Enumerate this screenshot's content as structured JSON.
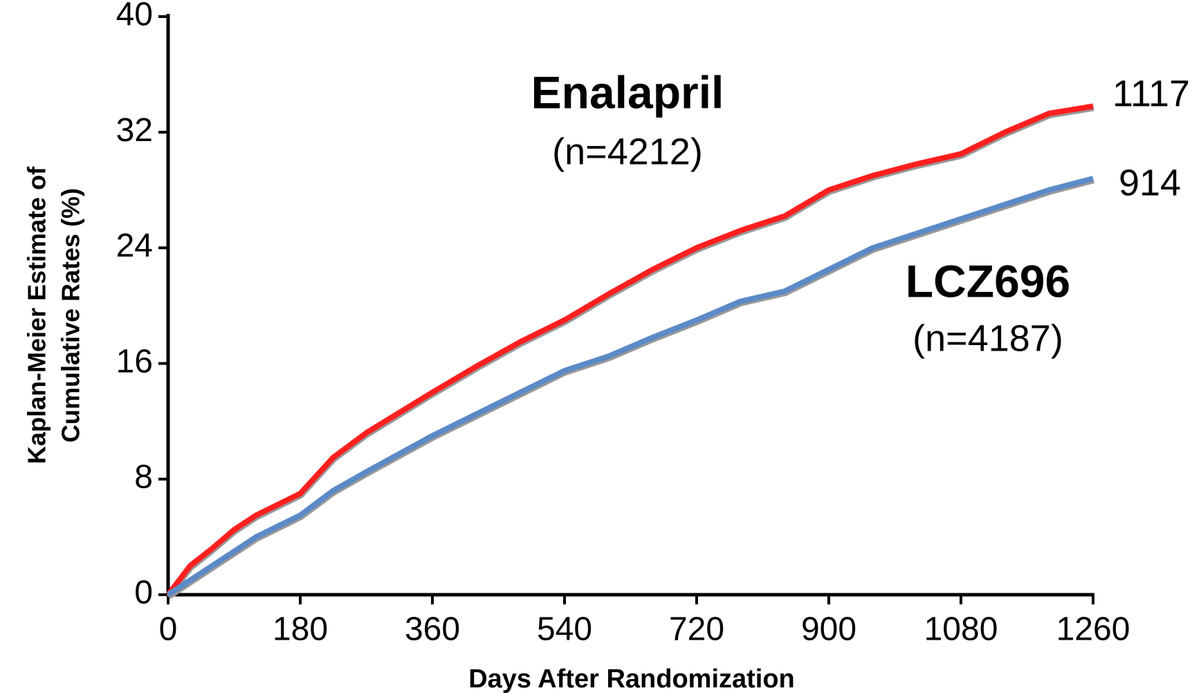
{
  "chart_data": {
    "type": "line",
    "x_label": "Days After Randomization",
    "y_label_lines": [
      "Kaplan-Meier Estimate of",
      "Cumulative Rates (%)"
    ],
    "x": [
      0,
      30,
      60,
      90,
      120,
      180,
      225,
      270,
      360,
      420,
      480,
      540,
      600,
      660,
      720,
      780,
      840,
      900,
      960,
      1020,
      1080,
      1140,
      1200,
      1260
    ],
    "series": [
      {
        "name": "Enalapril",
        "n_label": "(n=4212)",
        "events": 1117,
        "color": "#ff1f1f",
        "values": [
          0,
          2,
          3.2,
          4.5,
          5.5,
          7,
          9.5,
          11.2,
          14,
          15.8,
          17.5,
          19,
          20.8,
          22.5,
          24,
          25.2,
          26.2,
          28,
          29,
          29.8,
          30.5,
          32,
          33.3,
          33.8
        ]
      },
      {
        "name": "LCZ696",
        "n_label": "(n=4187)",
        "events": 914,
        "color": "#5b8ac7",
        "values": [
          0,
          1,
          2,
          3,
          4,
          5.5,
          7.2,
          8.5,
          11,
          12.5,
          14,
          15.5,
          16.5,
          17.8,
          19,
          20.3,
          21,
          22.5,
          24,
          25,
          26,
          27,
          28,
          28.8
        ]
      }
    ],
    "xlim": [
      0,
      1260
    ],
    "xticks": [
      0,
      180,
      360,
      540,
      720,
      900,
      1080,
      1260
    ],
    "ylim": [
      0,
      40
    ],
    "yticks": [
      0,
      8,
      16,
      24,
      32,
      40
    ],
    "grid": false
  }
}
